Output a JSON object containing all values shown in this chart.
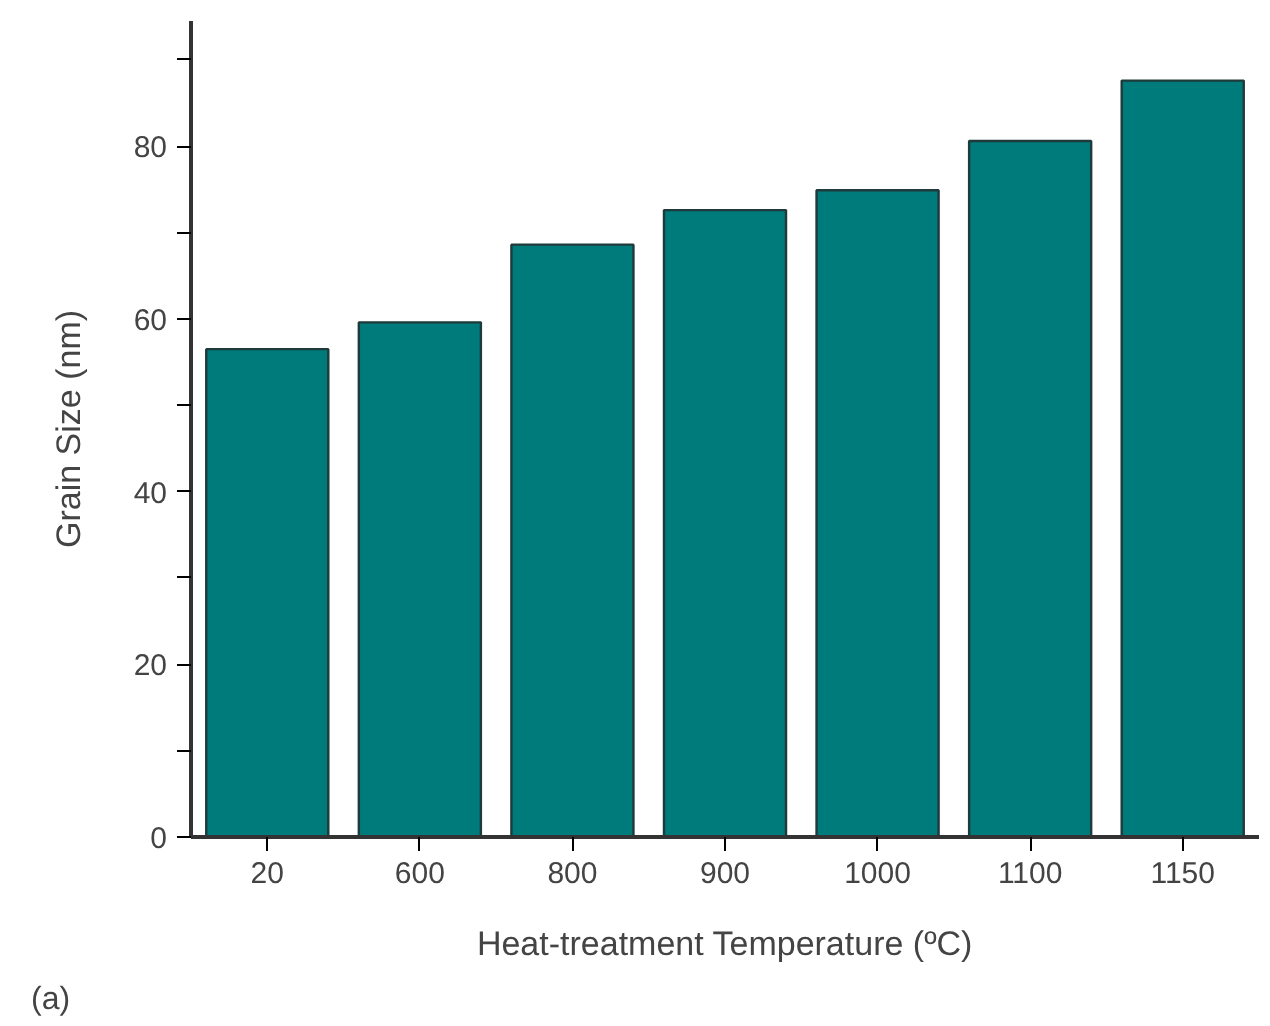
{
  "chart_data": {
    "type": "bar",
    "xlabel": "Heat-treatment Temperature (ºC)",
    "ylabel": "Grain Size (nm)",
    "categories": [
      "20",
      "600",
      "800",
      "900",
      "1000",
      "1100",
      "1150"
    ],
    "values": [
      56.5,
      59.6,
      68.6,
      72.6,
      74.9,
      80.6,
      87.6
    ],
    "color": "#007b7b",
    "ylim": [
      0,
      94.5
    ],
    "yticks": [
      0,
      {
        "value": 10,
        "label": null
      },
      20,
      {
        "value": 30,
        "label": null
      },
      40,
      {
        "value": 50,
        "label": null
      },
      60,
      {
        "value": 70,
        "label": null
      },
      80,
      {
        "value": 90,
        "label": null
      }
    ],
    "grid": false,
    "annotations": [
      "(a)"
    ]
  }
}
